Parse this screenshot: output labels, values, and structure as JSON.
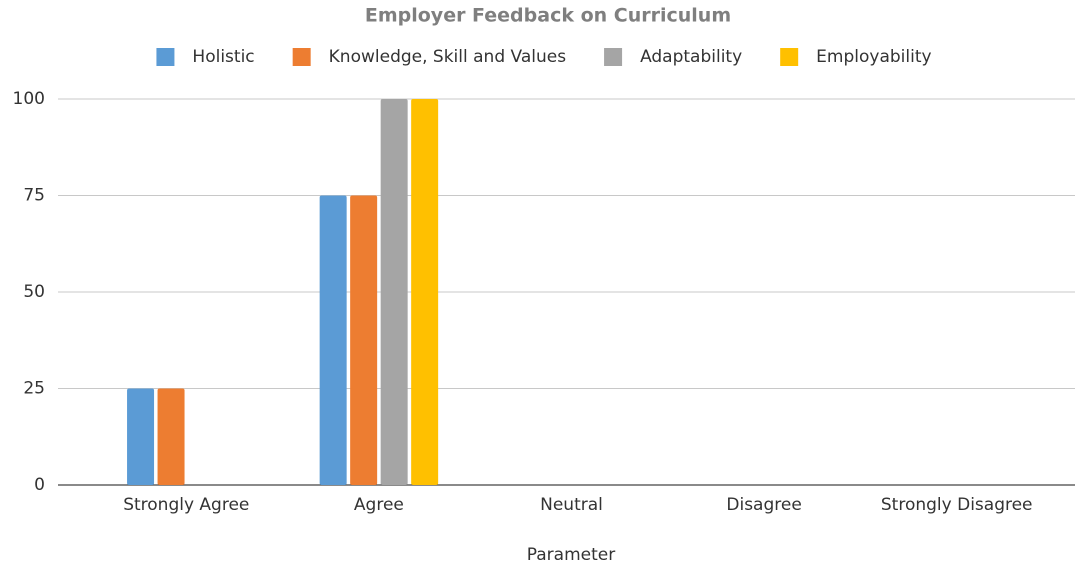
{
  "chart_data": {
    "type": "bar",
    "title": "Employer Feedback on Curriculum",
    "x_label": "Parameter",
    "categories": [
      "Strongly Agree",
      "Agree",
      "Neutral",
      "Disagree",
      "Strongly Disagree"
    ],
    "series": [
      {
        "name": "Holistic",
        "color": "#5b9bd5",
        "values": [
          25,
          75,
          0,
          0,
          0
        ]
      },
      {
        "name": "Knowledge, Skill and Values",
        "color": "#ed7d31",
        "values": [
          25,
          75,
          0,
          0,
          0
        ]
      },
      {
        "name": "Adaptability",
        "color": "#a5a5a5",
        "values": [
          0,
          100,
          0,
          0,
          0
        ]
      },
      {
        "name": "Employability",
        "color": "#ffc000",
        "values": [
          0,
          100,
          0,
          0,
          0
        ]
      }
    ],
    "ylim": [
      0,
      100
    ],
    "yticks": [
      0,
      25,
      50,
      75,
      100
    ],
    "grid": true,
    "legend": "top"
  }
}
